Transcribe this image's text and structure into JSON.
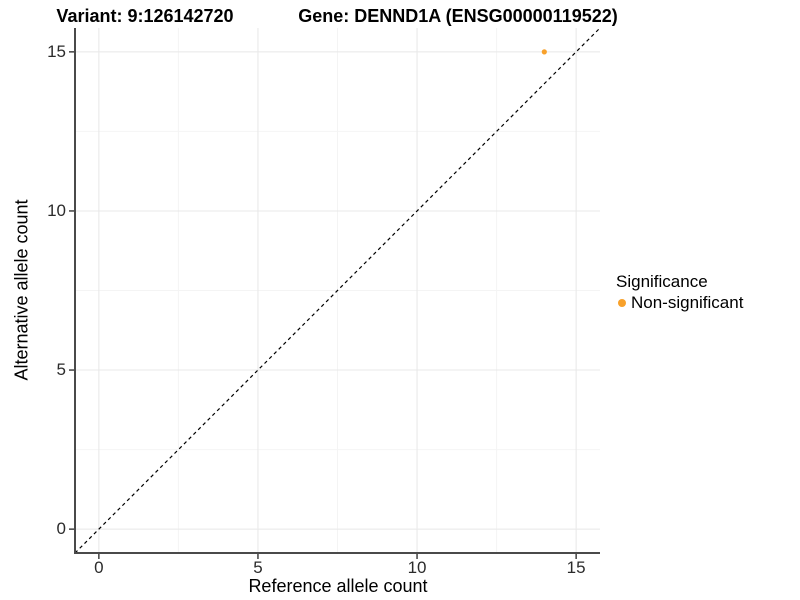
{
  "titles": {
    "variant": "Variant: 9:126142720",
    "gene": "Gene: DENND1A (ENSG00000119522)"
  },
  "chart_data": {
    "type": "scatter",
    "title_left": "Variant: 9:126142720",
    "title_right": "Gene: DENND1A (ENSG00000119522)",
    "xlabel": "Reference allele count",
    "ylabel": "Alternative allele count",
    "xlim": [
      -0.75,
      15.75
    ],
    "ylim": [
      -0.75,
      15.75
    ],
    "xticks": [
      0,
      5,
      10,
      15
    ],
    "yticks": [
      0,
      5,
      10,
      15
    ],
    "minor_xticks": [
      2.5,
      7.5,
      12.5
    ],
    "minor_yticks": [
      2.5,
      7.5,
      12.5
    ],
    "grid": true,
    "reference_line": {
      "kind": "identity",
      "style": "dashed",
      "color": "#000000"
    },
    "series": [
      {
        "name": "Non-significant",
        "color": "#F8A12B",
        "points": [
          {
            "x": 14,
            "y": 15
          }
        ]
      }
    ],
    "legend": {
      "title": "Significance",
      "position": "right",
      "entries": [
        {
          "label": "Non-significant",
          "color": "#F8A12B"
        }
      ]
    }
  },
  "style_colors": {
    "axis_line": "#4a4a4a",
    "tick_mark": "#333333",
    "grid_major": "#e8e8e8",
    "grid_minor": "#f4f4f4",
    "background": "#ffffff"
  }
}
